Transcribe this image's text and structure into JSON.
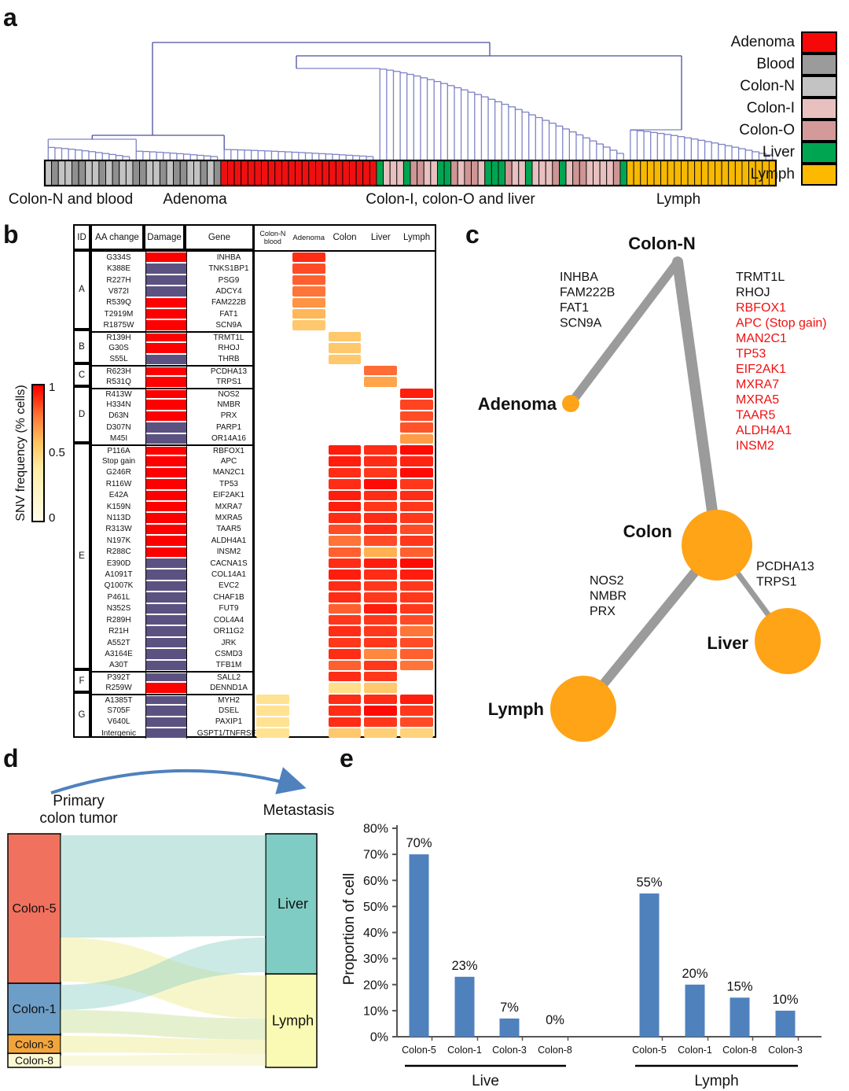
{
  "figure_labels": {
    "a": "a",
    "b": "b",
    "c": "c",
    "d": "d",
    "e": "e"
  },
  "panel_a": {
    "group_labels": [
      "Colon-N and blood",
      "Adenoma",
      "Colon-I, colon-O and liver",
      "Lymph"
    ],
    "legend": [
      {
        "label": "Adenoma",
        "color": "#f60808"
      },
      {
        "label": "Blood",
        "color": "#9b9b9b"
      },
      {
        "label": "Colon-N",
        "color": "#c3c3c3"
      },
      {
        "label": "Colon-I",
        "color": "#e8c0c0"
      },
      {
        "label": "Colon-O",
        "color": "#d49a9a"
      },
      {
        "label": "Liver",
        "color": "#00a551"
      },
      {
        "label": "Lymph",
        "color": "#fbba00"
      }
    ],
    "leaf_color_map": {
      "N": "#c3c3c3",
      "B": "#8f8f8f",
      "R": "#ee1010",
      "I": "#e8c0c0",
      "O": "#ce9595",
      "G": "#00a551",
      "Y": "#f7b800"
    },
    "leaf_sequence": "NBNNBBNNBNBNNBBNNBNBBNNBNBRRRRRRRRRRRRRRRRRRRRRRRGIIIGOOIIGGOIOOIGGGOIIGIIIOGIOOIIIIOGYYYYYYYYYYYYYYYYYYYYYY",
    "dendro_color_light": "#7d83c6",
    "dendro_color_dark": "#4a4f9d"
  },
  "panel_b": {
    "colorbar": {
      "label": "SNV frequency (% cells)",
      "ticks": [
        "1",
        "0.5",
        "0"
      ]
    },
    "columns": [
      "ID",
      "AA change",
      "Damage",
      "Gene"
    ],
    "heat_columns": [
      "Colon-N blood",
      "Adenoma",
      "Colon",
      "Liver",
      "Lymph"
    ],
    "damage_colors": {
      "r": "#ff0000",
      "p": "#5c5282"
    }
  },
  "panel_c": {
    "node_color": "#ffa317",
    "edge_color": "#9b9b9b",
    "nodes": [
      "Colon-N",
      "Adenoma",
      "Colon",
      "Liver",
      "Lymph"
    ],
    "adenoma_branch_genes": [
      "INHBA",
      "FAM222B",
      "FAT1",
      "SCN9A"
    ],
    "colon_branch_genes_black": [
      "TRMT1L",
      "RHOJ"
    ],
    "colon_branch_genes_red": [
      "RBFOX1",
      "APC  (Stop gain)",
      "MAN2C1",
      "TP53",
      "EIF2AK1",
      "MXRA7",
      "MXRA5",
      "TAAR5",
      "ALDH4A1",
      "INSM2"
    ],
    "lymph_branch_genes": [
      "NOS2",
      "NMBR",
      "PRX"
    ],
    "liver_branch_genes": [
      "PCDHA13",
      "TRPS1"
    ],
    "red_gene_color": "#f01010"
  },
  "panel_d": {
    "title_left_line1": "Primary",
    "title_left_line2": "colon tumor",
    "title_right": "Metastasis",
    "arrow_color": "#4f81bd"
  },
  "chart_data": [
    {
      "type": "bar",
      "ylabel": "Proportion of cell",
      "ylim": [
        0,
        80
      ],
      "ytick_step": 10,
      "ytick_labels": [
        "0%",
        "10%",
        "20%",
        "30%",
        "40%",
        "50%",
        "60%",
        "70%",
        "80%"
      ],
      "bar_color": "#4f81bd",
      "groups": [
        {
          "label": "Live",
          "categories": [
            "Colon-5",
            "Colon-1",
            "Colon-3",
            "Colon-8"
          ],
          "values": [
            70,
            23,
            7,
            0
          ],
          "value_labels": [
            "70%",
            "23%",
            "7%",
            "0%"
          ]
        },
        {
          "label": "Lymph",
          "categories": [
            "Colon-5",
            "Colon-1",
            "Colon-8",
            "Colon-3"
          ],
          "values": [
            55,
            20,
            15,
            10
          ],
          "value_labels": [
            "55%",
            "20%",
            "15%",
            "10%"
          ]
        }
      ]
    },
    {
      "type": "heatmap",
      "value_scale": "SNV frequency (% cells), 0 to 1",
      "heat_columns": [
        "Colon-N blood",
        "Adenoma",
        "Colon",
        "Liver",
        "Lymph"
      ],
      "rows": [
        {
          "g": "A",
          "aa": "G334S",
          "d": "r",
          "gene": "INHBA",
          "h": [
            null,
            0.88,
            null,
            null,
            null
          ]
        },
        {
          "g": "A",
          "aa": "K388E",
          "d": "p",
          "gene": "TNKS1BP1",
          "h": [
            null,
            0.8,
            null,
            null,
            null
          ]
        },
        {
          "g": "A",
          "aa": "R227H",
          "d": "p",
          "gene": "PSG9",
          "h": [
            null,
            0.75,
            null,
            null,
            null
          ]
        },
        {
          "g": "A",
          "aa": "V872I",
          "d": "p",
          "gene": "ADCY4",
          "h": [
            null,
            0.7,
            null,
            null,
            null
          ]
        },
        {
          "g": "A",
          "aa": "R539Q",
          "d": "r",
          "gene": "FAM222B",
          "h": [
            null,
            0.62,
            null,
            null,
            null
          ]
        },
        {
          "g": "A",
          "aa": "T2919M",
          "d": "r",
          "gene": "FAT1",
          "h": [
            null,
            0.52,
            null,
            null,
            null
          ]
        },
        {
          "g": "A",
          "aa": "R1875W",
          "d": "r",
          "gene": "SCN9A",
          "h": [
            null,
            0.45,
            null,
            null,
            null
          ]
        },
        {
          "g": "B",
          "aa": "R139H",
          "d": "r",
          "gene": "TRMT1L",
          "h": [
            null,
            null,
            0.45,
            null,
            null
          ]
        },
        {
          "g": "B",
          "aa": "G30S",
          "d": "r",
          "gene": "RHOJ",
          "h": [
            null,
            null,
            0.45,
            null,
            null
          ]
        },
        {
          "g": "B",
          "aa": "S55L",
          "d": "p",
          "gene": "THRB",
          "h": [
            null,
            null,
            0.45,
            null,
            null
          ]
        },
        {
          "g": "C",
          "aa": "R623H",
          "d": "r",
          "gene": "PCDHA13",
          "h": [
            null,
            null,
            null,
            0.72,
            null
          ]
        },
        {
          "g": "C",
          "aa": "R531Q",
          "d": "r",
          "gene": "TRPS1",
          "h": [
            null,
            null,
            null,
            0.58,
            null
          ]
        },
        {
          "g": "D",
          "aa": "R413W",
          "d": "r",
          "gene": "NOS2",
          "h": [
            null,
            null,
            null,
            null,
            0.92
          ]
        },
        {
          "g": "D",
          "aa": "H334N",
          "d": "r",
          "gene": "NMBR",
          "h": [
            null,
            null,
            null,
            null,
            0.82
          ]
        },
        {
          "g": "D",
          "aa": "D63N",
          "d": "r",
          "gene": "PRX",
          "h": [
            null,
            null,
            null,
            null,
            0.8
          ]
        },
        {
          "g": "D",
          "aa": "D307N",
          "d": "p",
          "gene": "PARP1",
          "h": [
            null,
            null,
            null,
            null,
            0.78
          ]
        },
        {
          "g": "D",
          "aa": "M45I",
          "d": "p",
          "gene": "OR14A16",
          "h": [
            null,
            null,
            null,
            null,
            0.6
          ]
        },
        {
          "g": "E",
          "aa": "P116A",
          "d": "r",
          "gene": "RBFOX1",
          "h": [
            null,
            null,
            0.92,
            0.88,
            0.97
          ]
        },
        {
          "g": "E",
          "aa": "Stop gain",
          "d": "r",
          "gene": "APC",
          "h": [
            null,
            null,
            0.92,
            0.88,
            0.9
          ]
        },
        {
          "g": "E",
          "aa": "G246R",
          "d": "r",
          "gene": "MAN2C1",
          "h": [
            null,
            null,
            0.88,
            0.85,
            0.97
          ]
        },
        {
          "g": "E",
          "aa": "R116W",
          "d": "r",
          "gene": "TP53",
          "h": [
            null,
            null,
            0.88,
            0.97,
            0.85
          ]
        },
        {
          "g": "E",
          "aa": "E42A",
          "d": "r",
          "gene": "EIF2AK1",
          "h": [
            null,
            null,
            0.92,
            0.88,
            0.88
          ]
        },
        {
          "g": "E",
          "aa": "K159N",
          "d": "r",
          "gene": "MXRA7",
          "h": [
            null,
            null,
            0.92,
            0.85,
            0.85
          ]
        },
        {
          "g": "E",
          "aa": "N113D",
          "d": "r",
          "gene": "MXRA5",
          "h": [
            null,
            null,
            0.88,
            0.88,
            0.85
          ]
        },
        {
          "g": "E",
          "aa": "R313W",
          "d": "r",
          "gene": "TAAR5",
          "h": [
            null,
            null,
            0.8,
            0.88,
            0.8
          ]
        },
        {
          "g": "E",
          "aa": "N197K",
          "d": "r",
          "gene": "ALDH4A1",
          "h": [
            null,
            null,
            0.7,
            0.8,
            0.85
          ]
        },
        {
          "g": "E",
          "aa": "R288C",
          "d": "r",
          "gene": "INSM2",
          "h": [
            null,
            null,
            0.75,
            0.55,
            0.75
          ]
        },
        {
          "g": "E",
          "aa": "E390D",
          "d": "p",
          "gene": "CACNA1S",
          "h": [
            null,
            null,
            0.88,
            0.92,
            0.97
          ]
        },
        {
          "g": "E",
          "aa": "A1091T",
          "d": "p",
          "gene": "COL14A1",
          "h": [
            null,
            null,
            0.92,
            0.88,
            0.92
          ]
        },
        {
          "g": "E",
          "aa": "Q1007K",
          "d": "p",
          "gene": "EVC2",
          "h": [
            null,
            null,
            0.88,
            0.85,
            0.85
          ]
        },
        {
          "g": "E",
          "aa": "P461L",
          "d": "p",
          "gene": "CHAF1B",
          "h": [
            null,
            null,
            0.88,
            0.85,
            0.85
          ]
        },
        {
          "g": "E",
          "aa": "N352S",
          "d": "p",
          "gene": "FUT9",
          "h": [
            null,
            null,
            0.75,
            0.92,
            0.85
          ]
        },
        {
          "g": "E",
          "aa": "R289H",
          "d": "p",
          "gene": "COL4A4",
          "h": [
            null,
            null,
            0.85,
            0.85,
            0.8
          ]
        },
        {
          "g": "E",
          "aa": "R21H",
          "d": "p",
          "gene": "OR11G2",
          "h": [
            null,
            null,
            0.88,
            0.85,
            0.7
          ]
        },
        {
          "g": "E",
          "aa": "A552T",
          "d": "p",
          "gene": "JRK",
          "h": [
            null,
            null,
            0.85,
            0.85,
            0.8
          ]
        },
        {
          "g": "E",
          "aa": "A3164E",
          "d": "p",
          "gene": "CSMD3",
          "h": [
            null,
            null,
            0.88,
            0.65,
            0.75
          ]
        },
        {
          "g": "E",
          "aa": "A30T",
          "d": "p",
          "gene": "TFB1M",
          "h": [
            null,
            null,
            0.75,
            0.85,
            0.7
          ]
        },
        {
          "g": "F",
          "aa": "P392T",
          "d": "p",
          "gene": "SALL2",
          "h": [
            null,
            null,
            0.88,
            0.85,
            null
          ]
        },
        {
          "g": "F",
          "aa": "R259W",
          "d": "r",
          "gene": "DENND1A",
          "h": [
            null,
            null,
            0.35,
            0.45,
            null
          ]
        },
        {
          "g": "G",
          "aa": "A1385T",
          "d": "p",
          "gene": "MYH2",
          "h": [
            0.32,
            null,
            0.88,
            0.88,
            0.92
          ]
        },
        {
          "g": "G",
          "aa": "S705F",
          "d": "p",
          "gene": "DSEL",
          "h": [
            0.32,
            null,
            0.88,
            0.97,
            0.85
          ]
        },
        {
          "g": "G",
          "aa": "V640L",
          "d": "p",
          "gene": "PAXIP1",
          "h": [
            0.32,
            null,
            0.88,
            0.85,
            0.8
          ]
        },
        {
          "g": "G",
          "aa": "Intergenic",
          "d": "p",
          "gene": "GSPT1/TNFRSF1",
          "h": [
            0.32,
            null,
            0.45,
            0.42,
            0.4
          ]
        }
      ]
    },
    {
      "type": "sankey",
      "left_nodes": [
        {
          "label": "Colon-5",
          "color": "#f0715e",
          "fraction": 0.64
        },
        {
          "label": "Colon-1",
          "color": "#6d9ec7",
          "fraction": 0.22
        },
        {
          "label": "Colon-3",
          "color": "#f2a43c",
          "fraction": 0.08
        },
        {
          "label": "Colon-8",
          "color": "#faf9d4",
          "fraction": 0.06
        }
      ],
      "right_nodes": [
        {
          "label": "Liver",
          "color": "#7eccc3",
          "fraction": 0.6
        },
        {
          "label": "Lymph",
          "color": "#fafab4",
          "fraction": 0.4
        }
      ]
    }
  ]
}
